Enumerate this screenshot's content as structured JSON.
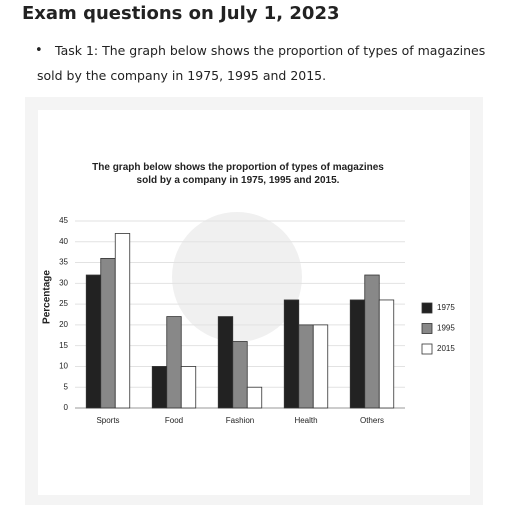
{
  "heading": "Exam questions on July 1, 2023",
  "task": "Task 1: The graph below shows the proportion of types of magazines sold by the company in 1975, 1995 and 2015.",
  "chart_data": {
    "type": "bar",
    "title": "The graph below shows the proportion of types of magazines sold by a company in 1975, 1995 and 2015.",
    "y_label": "Percentage",
    "categories": [
      "Sports",
      "Food",
      "Fashion",
      "Health",
      "Others"
    ],
    "series": [
      {
        "name": "1975",
        "color": "#222222",
        "values": [
          32,
          10,
          22,
          26,
          26
        ]
      },
      {
        "name": "1995",
        "color": "#888888",
        "values": [
          36,
          22,
          16,
          20,
          32
        ]
      },
      {
        "name": "2015",
        "color": "#ffffff",
        "values": [
          42,
          10,
          5,
          20,
          26
        ]
      }
    ],
    "ylim": [
      0,
      45
    ],
    "yticks": [
      0,
      5,
      10,
      15,
      20,
      25,
      30,
      35,
      40,
      45
    ],
    "grid": true,
    "legend": "right"
  }
}
